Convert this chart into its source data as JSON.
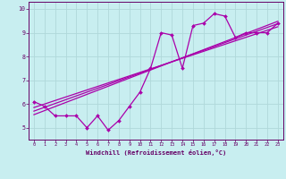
{
  "xlabel": "Windchill (Refroidissement éolien,°C)",
  "bg_color": "#c8eef0",
  "grid_color": "#b0d8da",
  "line_color": "#aa00aa",
  "spine_color": "#660066",
  "tick_color": "#660066",
  "xlim": [
    -0.5,
    23.5
  ],
  "ylim": [
    4.5,
    10.3
  ],
  "x_ticks": [
    0,
    1,
    2,
    3,
    4,
    5,
    6,
    7,
    8,
    9,
    10,
    11,
    12,
    13,
    14,
    15,
    16,
    17,
    18,
    19,
    20,
    21,
    22,
    23
  ],
  "y_ticks": [
    5,
    6,
    7,
    8,
    9,
    10
  ],
  "data_x": [
    0,
    1,
    2,
    3,
    4,
    5,
    6,
    7,
    8,
    9,
    10,
    11,
    12,
    13,
    14,
    15,
    16,
    17,
    18,
    19,
    20,
    21,
    22,
    23
  ],
  "data_y": [
    6.1,
    5.9,
    5.5,
    5.5,
    5.5,
    5.0,
    5.5,
    4.9,
    5.3,
    5.9,
    6.5,
    7.5,
    9.0,
    8.9,
    7.5,
    9.3,
    9.4,
    9.8,
    9.7,
    8.8,
    9.0,
    9.0,
    9.0,
    9.4
  ],
  "reg_lines": [
    [
      5.85,
      9.25
    ],
    [
      5.7,
      9.38
    ],
    [
      5.55,
      9.48
    ]
  ]
}
